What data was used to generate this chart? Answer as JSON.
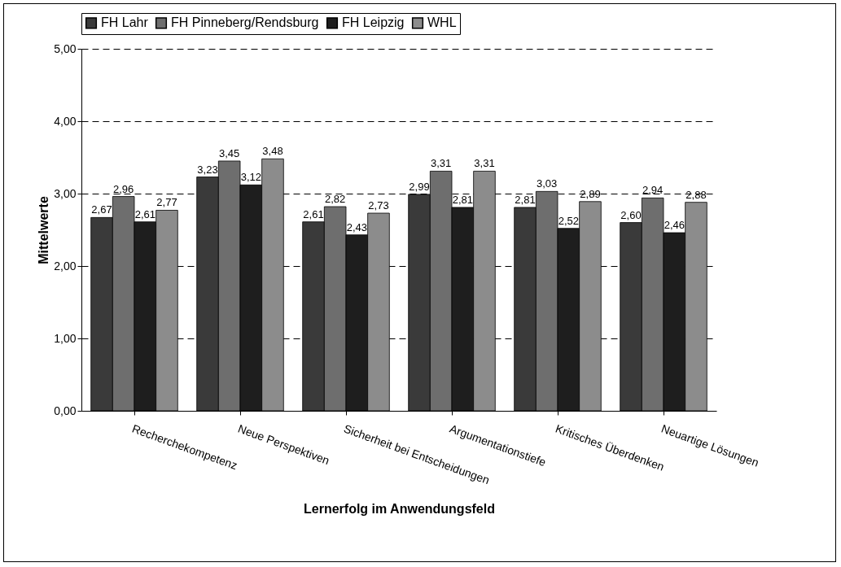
{
  "chart_data": {
    "type": "bar",
    "xlabel": "Lernerfolg im Anwendungsfeld",
    "ylabel": "Mittelwerte",
    "categories": [
      "Recherchekompetenz",
      "Neue Perspektiven",
      "Sicherheit bei Entscheidungen",
      "Argumentationstiefe",
      "Kritisches Überdenken",
      "Neuartige Lösungen"
    ],
    "series": [
      {
        "name": "FH Lahr",
        "color": "#3a3a3a",
        "values": [
          2.67,
          3.23,
          2.61,
          2.99,
          2.81,
          2.6
        ],
        "value_labels": [
          "2,67",
          "3,23",
          "2,61",
          "2,99",
          "2,81",
          "2,60"
        ]
      },
      {
        "name": "FH Pinneberg/Rendsburg",
        "color": "#6e6e6e",
        "values": [
          2.96,
          3.45,
          2.82,
          3.31,
          3.03,
          2.94
        ],
        "value_labels": [
          "2,96",
          "3,45",
          "2,82",
          "3,31",
          "3,03",
          "2,94"
        ]
      },
      {
        "name": "FH Leipzig",
        "color": "#1e1e1e",
        "values": [
          2.61,
          3.12,
          2.43,
          2.81,
          2.52,
          2.46
        ],
        "value_labels": [
          "2,61",
          "3,12",
          "2,43",
          "2,81",
          "2,52",
          "2,46"
        ]
      },
      {
        "name": "WHL",
        "color": "#8c8c8c",
        "values": [
          2.77,
          3.48,
          2.73,
          3.31,
          2.89,
          2.88
        ],
        "value_labels": [
          "2,77",
          "3,48",
          "2,73",
          "3,31",
          "2,89",
          "2,88"
        ]
      }
    ],
    "ylim": [
      0,
      5
    ],
    "yticks": [
      {
        "value": 0,
        "label": "0,00"
      },
      {
        "value": 1,
        "label": "1,00"
      },
      {
        "value": 2,
        "label": "2,00"
      },
      {
        "value": 3,
        "label": "3,00"
      },
      {
        "value": 4,
        "label": "4,00"
      },
      {
        "value": 5,
        "label": "5,00"
      }
    ],
    "grid": "y",
    "legend": "top"
  }
}
